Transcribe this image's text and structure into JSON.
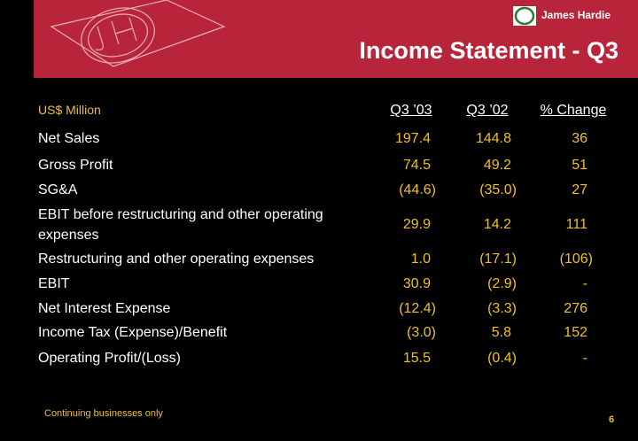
{
  "header": {
    "brand": "James Hardie",
    "title": "Income Statement - Q3"
  },
  "table": {
    "unit_label": "US$ Million",
    "columns": [
      "Q3 ’03",
      "Q3 ’02",
      "% Change"
    ],
    "rows": [
      [
        "Net Sales",
        "197.4",
        "144.8",
        "36"
      ],
      [
        "Gross Profit",
        "74.5",
        "49.2",
        "51"
      ],
      [
        "SG&A",
        "(44.6)",
        "(35.0)",
        "27"
      ],
      [
        "EBIT before restructuring and other operating expenses",
        "29.9",
        "14.2",
        "111"
      ],
      [
        "Restructuring and other operating expenses",
        "1.0",
        "(17.1)",
        "(106)"
      ],
      [
        "EBIT",
        "30.9",
        "(2.9)",
        "-"
      ],
      [
        "Net Interest Expense",
        "(12.4)",
        "(3.3)",
        "276"
      ],
      [
        "Income Tax (Expense)/Benefit",
        "(3.0)",
        "5.8",
        "152"
      ],
      [
        "Operating Profit/(Loss)",
        "15.5",
        "(0.4)",
        "-"
      ]
    ]
  },
  "footer": {
    "note": "Continuing businesses only",
    "page": "6"
  }
}
